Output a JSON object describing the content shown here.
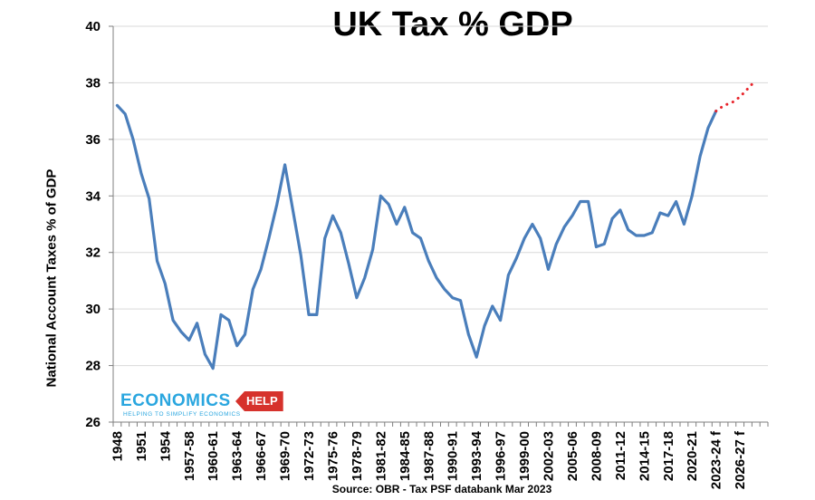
{
  "chart_data": {
    "type": "line",
    "title": "UK Tax % GDP",
    "ylabel": "National Account Taxes % of GDP",
    "xlabel": "",
    "source": "Source: OBR - Tax PSF databank Mar 2023",
    "ylim": [
      26,
      40
    ],
    "yticks": [
      26,
      28,
      30,
      32,
      34,
      36,
      38,
      40
    ],
    "x_tick_labels": [
      "1948",
      "1951",
      "1954",
      "1957-58",
      "1960-61",
      "1963-64",
      "1966-67",
      "1969-70",
      "1972-73",
      "1975-76",
      "1978-79",
      "1981-82",
      "1984-85",
      "1987-88",
      "1990-91",
      "1993-94",
      "1996-97",
      "1999-00",
      "2002-03",
      "2005-06",
      "2008-09",
      "2011-12",
      "2014-15",
      "2017-18",
      "2020-21",
      "2023-24 f",
      "2026-27 f"
    ],
    "grid": true,
    "series": [
      {
        "style": "solid",
        "color": "#4a7ebb",
        "values": [
          37.2,
          36.9,
          36.0,
          34.8,
          33.9,
          31.7,
          30.9,
          29.6,
          29.2,
          28.9,
          29.5,
          28.4,
          27.9,
          29.8,
          29.6,
          28.7,
          29.1,
          30.7,
          31.4,
          32.5,
          33.7,
          35.1,
          33.5,
          31.9,
          29.8,
          29.8,
          32.5,
          33.3,
          32.7,
          31.6,
          30.4,
          31.1,
          32.1,
          34.0,
          33.7,
          33.0,
          33.6,
          32.7,
          32.5,
          31.7,
          31.1,
          30.7,
          30.4,
          30.3,
          29.1,
          28.3,
          29.4,
          30.1,
          29.6,
          31.2,
          31.8,
          32.5,
          33.0,
          32.5,
          31.4,
          32.3,
          32.9,
          33.3,
          33.8,
          33.8,
          32.2,
          32.3,
          33.2,
          33.5,
          32.8,
          32.6,
          32.6,
          32.7,
          33.4,
          33.3,
          33.8,
          33.0,
          34.0,
          35.4,
          36.4,
          37.0
        ]
      },
      {
        "style": "dotted",
        "color": "#e8242b",
        "values": [
          37.0,
          37.2,
          37.3,
          37.5,
          37.8,
          38.1
        ]
      }
    ]
  },
  "logo": {
    "main": "ECONOMICS",
    "tag": "HELP",
    "tagline": "HELPING TO SIMPLIFY ECONOMICS"
  }
}
